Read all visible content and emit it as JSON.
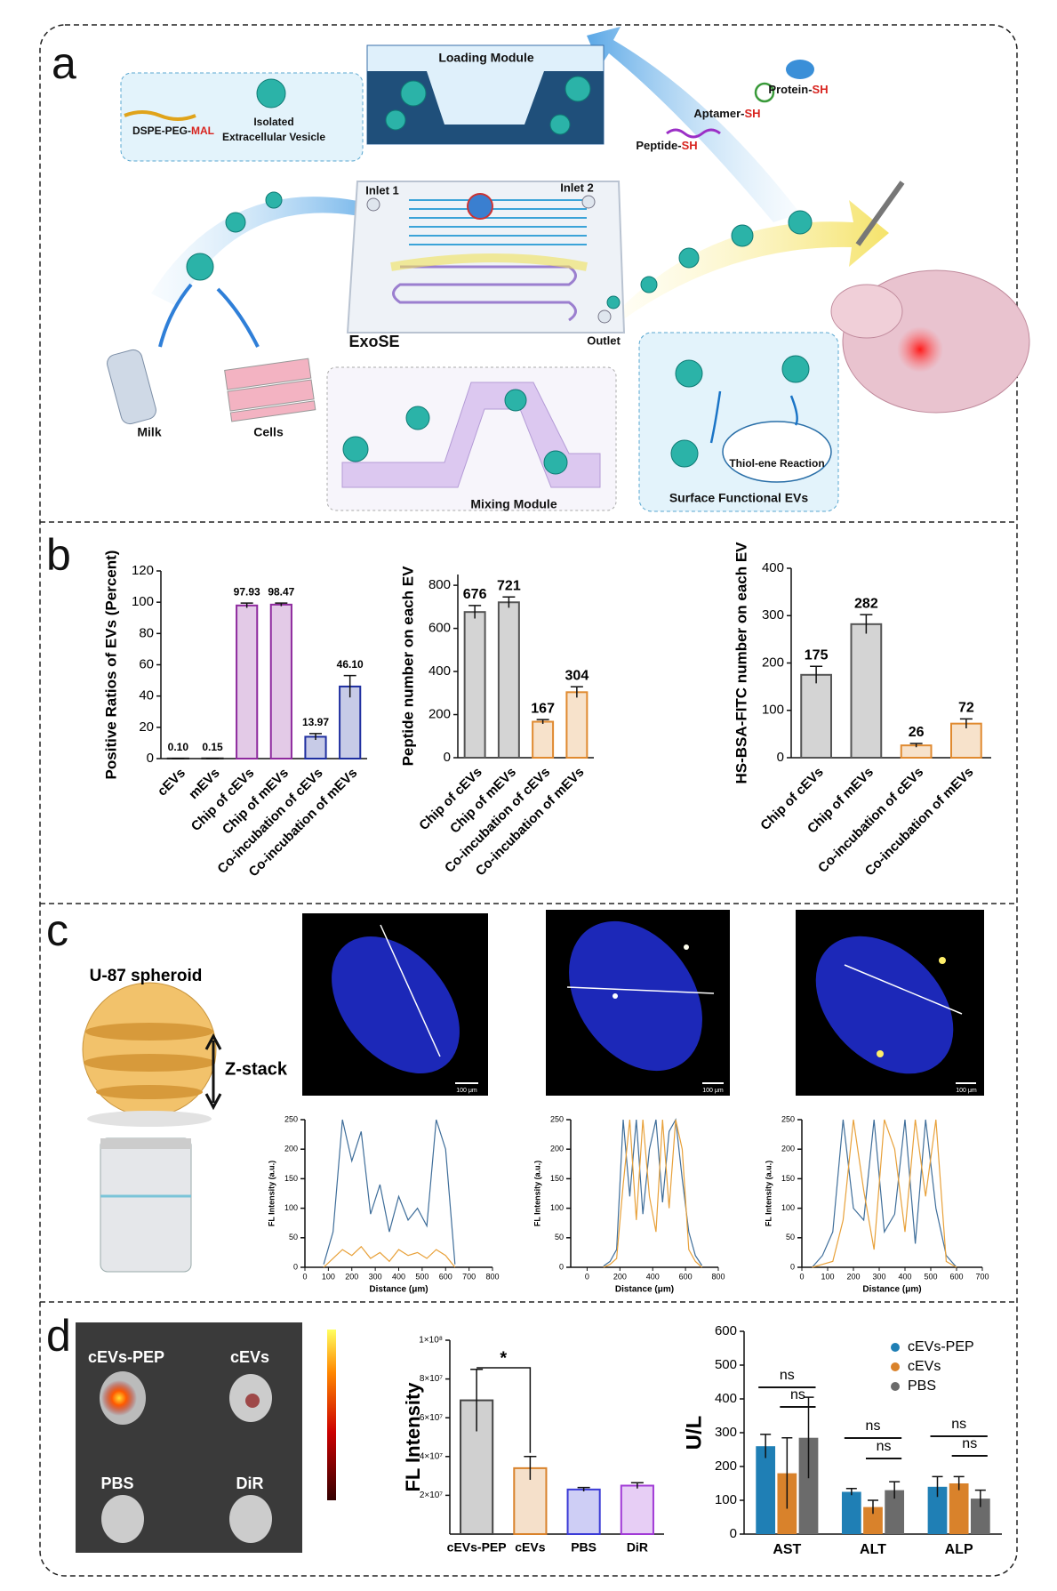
{
  "panel_labels": [
    "a",
    "b",
    "c",
    "d"
  ],
  "panel_a": {
    "loading_module": "Loading Module",
    "dspe": {
      "text": "DSPE-PEG-",
      "highlight": "MAL"
    },
    "isolated": [
      "Isolated",
      "Extracellular Vesicle"
    ],
    "inlet1": "Inlet 1",
    "inlet2": "Inlet 2",
    "exose": "ExoSE",
    "outlet": "Outlet",
    "milk": "Milk",
    "cells": "Cells",
    "mixing_module": "Mixing Module",
    "peptide": {
      "text": "Peptide-",
      "highlight": "SH"
    },
    "aptamer": {
      "text": "Aptamer-",
      "highlight": "SH"
    },
    "protein": {
      "text": "Protein-",
      "highlight": "SH"
    },
    "thiol_ene": "Thiol-ene Reaction",
    "surface": "Surface Functional EVs"
  },
  "panel_c": {
    "spheroid": "U-87 spheroid",
    "zstack": "Z-stack",
    "scale_bars": [
      "100 μm",
      "100 μm",
      "100 μm"
    ]
  },
  "panel_d": {
    "image_labels": [
      "cEVs-PEP",
      "cEVs",
      "PBS",
      "DiR"
    ]
  },
  "chart_data": [
    {
      "type": "bar",
      "ylabel": "Positive Ratios of EVs (Percent)",
      "categories": [
        "cEVs",
        "mEVs",
        "Chip of cEVs",
        "Chip of mEVs",
        "Co-incubation of cEVs",
        "Co-incubation of mEVs"
      ],
      "values": [
        0.1,
        0.15,
        97.93,
        98.47,
        13.97,
        46.1
      ],
      "value_labels": [
        "0.10",
        "0.15",
        "97.93",
        "98.47",
        "13.97",
        "46.10"
      ],
      "errors": [
        0,
        0,
        1.5,
        1,
        2,
        7
      ],
      "colors": [
        "#222222",
        "#222222",
        "#8e2a9e",
        "#8e2a9e",
        "#1f2fa0",
        "#1f2fa0"
      ],
      "data_labels": true,
      "ylim": [
        0,
        120
      ],
      "yticks": [
        0,
        20,
        40,
        60,
        80,
        100,
        120
      ]
    },
    {
      "type": "bar",
      "ylabel": "Peptide number on each EV",
      "categories": [
        "Chip of cEVs",
        "Chip of mEVs",
        "Co-incubation of cEVs",
        "Co-incubation of mEVs"
      ],
      "values": [
        676,
        721,
        167,
        304
      ],
      "errors": [
        30,
        25,
        10,
        25
      ],
      "colors": [
        "#555555",
        "#555555",
        "#e08a30",
        "#e08a30"
      ],
      "data_labels": true,
      "ylim": [
        0,
        850
      ],
      "yticks": [
        0,
        200,
        400,
        600,
        800
      ]
    },
    {
      "type": "bar",
      "ylabel": "HS-BSA-FITC number on each EV",
      "categories": [
        "Chip of cEVs",
        "Chip of mEVs",
        "Co-incubation of cEVs",
        "Co-incubation of mEVs"
      ],
      "values": [
        175,
        282,
        26,
        72
      ],
      "errors": [
        18,
        20,
        4,
        10
      ],
      "colors": [
        "#555555",
        "#555555",
        "#e08a30",
        "#e08a30"
      ],
      "data_labels": true,
      "ylim": [
        0,
        400
      ],
      "yticks": [
        0,
        100,
        200,
        300,
        400
      ]
    },
    {
      "type": "line",
      "xlabel": "Distance (μm)",
      "ylabel": "FL Intensity (a.u.)",
      "x": [
        80,
        120,
        160,
        200,
        240,
        280,
        320,
        360,
        400,
        440,
        480,
        520,
        560,
        600,
        640
      ],
      "series": [
        {
          "color": "#3f6e9a",
          "values": [
            5,
            60,
            250,
            180,
            230,
            90,
            140,
            60,
            120,
            80,
            100,
            70,
            250,
            200,
            5
          ]
        },
        {
          "color": "#e8a13a",
          "values": [
            0,
            15,
            30,
            20,
            35,
            15,
            25,
            10,
            30,
            20,
            25,
            15,
            30,
            20,
            0
          ]
        }
      ],
      "xlim": [
        0,
        800
      ],
      "xticks": [
        0,
        100,
        200,
        300,
        400,
        500,
        600,
        700,
        800
      ],
      "ylim": [
        0,
        250
      ],
      "yticks": [
        0,
        50,
        100,
        150,
        200,
        250
      ]
    },
    {
      "type": "line",
      "xlabel": "Distance (μm)",
      "ylabel": "FL Intensity (a.u.)",
      "x": [
        100,
        140,
        180,
        220,
        260,
        300,
        340,
        380,
        420,
        460,
        500,
        540,
        580,
        620,
        660,
        700
      ],
      "series": [
        {
          "color": "#3f6e9a",
          "values": [
            2,
            10,
            30,
            250,
            120,
            250,
            90,
            200,
            250,
            110,
            230,
            250,
            150,
            60,
            20,
            3
          ]
        },
        {
          "color": "#e8a13a",
          "values": [
            0,
            5,
            15,
            140,
            250,
            80,
            250,
            120,
            60,
            250,
            100,
            250,
            200,
            30,
            10,
            0
          ]
        }
      ],
      "xlim": [
        -100,
        800
      ],
      "xticks": [
        0,
        200,
        400,
        600,
        800
      ],
      "ylim": [
        0,
        250
      ],
      "yticks": [
        0,
        50,
        100,
        150,
        200,
        250
      ]
    },
    {
      "type": "line",
      "xlabel": "Distance (μm)",
      "ylabel": "FL Intensity (a.u.)",
      "x": [
        40,
        80,
        120,
        160,
        200,
        240,
        280,
        320,
        360,
        400,
        440,
        480,
        520,
        560,
        600
      ],
      "series": [
        {
          "color": "#3f6e9a",
          "values": [
            0,
            20,
            60,
            250,
            100,
            80,
            250,
            60,
            90,
            250,
            40,
            250,
            100,
            20,
            0
          ]
        },
        {
          "color": "#e8a13a",
          "values": [
            0,
            5,
            10,
            80,
            250,
            130,
            30,
            250,
            200,
            60,
            250,
            120,
            250,
            10,
            0
          ]
        }
      ],
      "xlim": [
        0,
        700
      ],
      "xticks": [
        0,
        100,
        200,
        300,
        400,
        500,
        600,
        700
      ],
      "ylim": [
        0,
        250
      ],
      "yticks": [
        0,
        50,
        100,
        150,
        200,
        250
      ]
    },
    {
      "type": "bar",
      "ylabel": "FL Intensity",
      "categories": [
        "cEVs-PEP",
        "cEVs",
        "PBS",
        "DiR"
      ],
      "values": [
        69000000,
        34000000,
        23000000,
        25000000
      ],
      "errors": [
        16000000,
        6000000,
        1000000,
        1500000
      ],
      "colors": [
        "#444444",
        "#d9822b",
        "#3b3bd6",
        "#a13bd6"
      ],
      "annotations": [
        "*"
      ],
      "ylim": [
        0,
        100000000
      ],
      "yticks": [
        {
          "value": 20000000,
          "label": "2×10⁷"
        },
        {
          "value": 40000000,
          "label": "4×10⁷"
        },
        {
          "value": 60000000,
          "label": "6×10⁷"
        },
        {
          "value": 80000000,
          "label": "8×10⁷"
        },
        {
          "value": 100000000,
          "label": "1×10⁸"
        }
      ]
    },
    {
      "type": "grouped_bar",
      "ylabel": "U/L",
      "categories": [
        "AST",
        "ALT",
        "ALP"
      ],
      "series": [
        {
          "name": "cEVs-PEP",
          "color": "#1f7fb5",
          "values": [
            260,
            125,
            140
          ],
          "errors": [
            35,
            10,
            30
          ]
        },
        {
          "name": "cEVs",
          "color": "#d9822b",
          "values": [
            180,
            80,
            150
          ],
          "errors": [
            105,
            20,
            20
          ]
        },
        {
          "name": "PBS",
          "color": "#6b6b6b",
          "values": [
            285,
            130,
            105
          ],
          "errors": [
            120,
            25,
            25
          ]
        }
      ],
      "annotations": [
        "ns",
        "ns",
        "ns",
        "ns",
        "ns",
        "ns"
      ],
      "legend": "upper right",
      "ylim": [
        0,
        600
      ],
      "yticks": [
        0,
        100,
        200,
        300,
        400,
        500,
        600
      ]
    }
  ]
}
